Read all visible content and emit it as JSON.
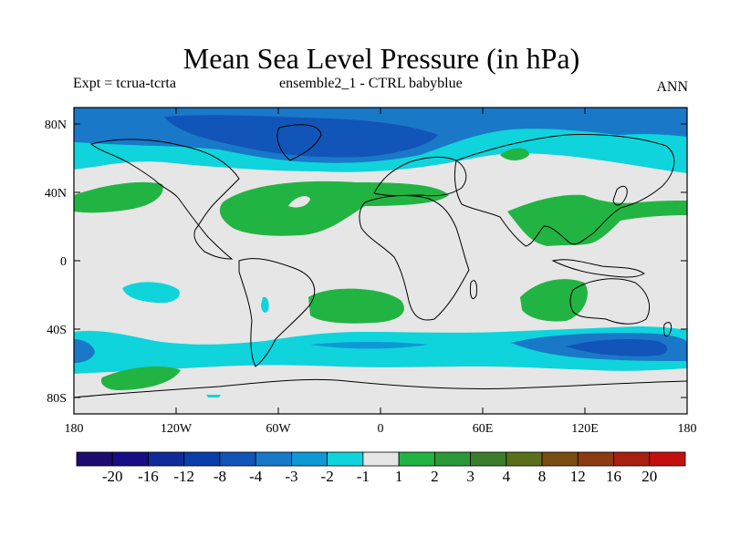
{
  "title": "Mean Sea Level Pressure (in hPa)",
  "subtitle_left": "Expt = tcrua-tcrta",
  "subtitle_center": "ensemble2_1 - CTRL babyblue",
  "season": "ANN",
  "lat_ticks": [
    "80N",
    "40N",
    "0",
    "40S",
    "80S"
  ],
  "lon_ticks": [
    "180",
    "120W",
    "60W",
    "0",
    "60E",
    "120E",
    "180"
  ],
  "colorbar": {
    "labels": [
      "-20",
      "-16",
      "-12",
      "-8",
      "-4",
      "-3",
      "-2",
      "-1",
      "1",
      "2",
      "3",
      "4",
      "8",
      "12",
      "16",
      "20"
    ],
    "colors": [
      "#1f0a6e",
      "#180d84",
      "#0f2a99",
      "#0a3ea8",
      "#1155b8",
      "#1a78c8",
      "#0f98d6",
      "#0fd4dc",
      "#e6e6e6",
      "#22b443",
      "#2b9a36",
      "#3b7d2a",
      "#5a6e1c",
      "#7a4d12",
      "#8c3a12",
      "#a8200f",
      "#c40f0f"
    ]
  },
  "map_colors": {
    "background": "#e6e6e6",
    "cyan": "#0fd4dc",
    "mid_blue": "#0f98d6",
    "blue": "#1a78c8",
    "dark_blue": "#1155b8",
    "green": "#22b443"
  }
}
